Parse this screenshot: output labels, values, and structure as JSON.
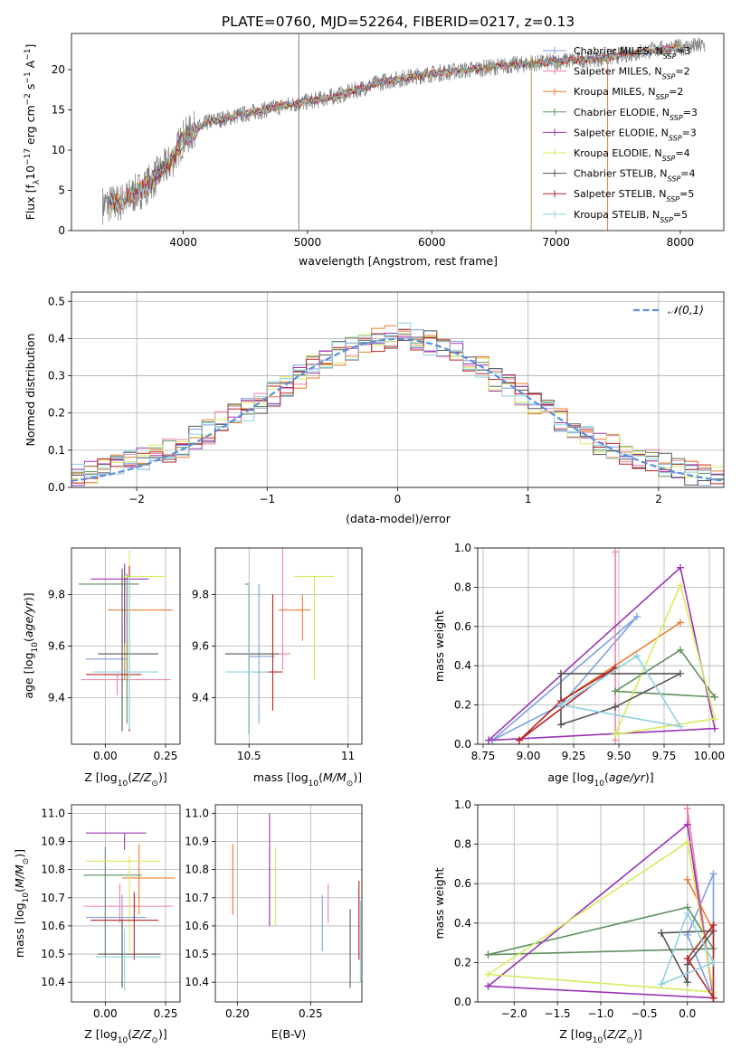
{
  "figure_title": "PLATE=0760, MJD=52264, FIBERID=0217, z=0.13",
  "colors": {
    "Chabrier MILES": "#7f9fdf",
    "Salpeter MILES": "#ee82a9",
    "Kroupa MILES": "#ea7d2f",
    "Chabrier ELODIE": "#5f8f5f",
    "Salpeter ELODIE": "#9b35b5",
    "Kroupa ELODIE": "#d8eb5c",
    "Chabrier STELIB": "#555555",
    "Salpeter STELIB": "#b52525",
    "Kroupa STELIB": "#8fd1e0",
    "normal_curve": "#5b8fd9",
    "data": "#808080"
  },
  "chart_data": [
    {
      "id": "spectrum",
      "type": "line",
      "title": "PLATE=0760, MJD=52264, FIBERID=0217, z=0.13",
      "xlabel": "wavelength [Angstrom, rest frame]",
      "ylabel": "Flux [f_λ 10^-17 erg cm^-2 s^-1 A^-1]",
      "xlim": [
        3100,
        8350
      ],
      "ylim": [
        0,
        24.5
      ],
      "xticks": [
        4000,
        5000,
        6000,
        7000,
        8000
      ],
      "yticks": [
        0,
        5,
        10,
        15,
        20
      ],
      "grid": false,
      "legend_position": "top-right",
      "legend": [
        {
          "label": "Chabrier MILES, N",
          "sub": "SSP",
          "suffix": "=3"
        },
        {
          "label": "Salpeter MILES, N",
          "sub": "SSP",
          "suffix": "=2"
        },
        {
          "label": "Kroupa MILES, N",
          "sub": "SSP",
          "suffix": "=2"
        },
        {
          "label": "Chabrier ELODIE, N",
          "sub": "SSP",
          "suffix": "=3"
        },
        {
          "label": "Salpeter ELODIE, N",
          "sub": "SSP",
          "suffix": "=3"
        },
        {
          "label": "Kroupa ELODIE, N",
          "sub": "SSP",
          "suffix": "=4"
        },
        {
          "label": "Chabrier STELIB, N",
          "sub": "SSP",
          "suffix": "=4"
        },
        {
          "label": "Salpeter STELIB, N",
          "sub": "SSP",
          "suffix": "=5"
        },
        {
          "label": "Kroupa STELIB, N",
          "sub": "SSP",
          "suffix": "=5"
        }
      ],
      "continuum": {
        "x": [
          3350,
          3500,
          3700,
          3900,
          4000,
          4200,
          4500,
          4800,
          5000,
          5300,
          5600,
          6000,
          6300,
          6600,
          7000,
          7400,
          7800,
          8200
        ],
        "y": [
          3.2,
          3.5,
          5.5,
          8.5,
          11.5,
          13.5,
          14.5,
          15.5,
          16.0,
          17.0,
          18.5,
          19.5,
          20.0,
          20.5,
          21.0,
          21.5,
          22.5,
          23.0
        ]
      },
      "spikes": [
        {
          "x": 4930,
          "y0": 0,
          "y1": 24.5
        },
        {
          "x": 6800,
          "y0": 0,
          "y1": 21.8
        },
        {
          "x": 7415,
          "y0": 0,
          "y1": 21.0
        }
      ]
    },
    {
      "id": "residuals",
      "type": "histogram",
      "xlabel": "(data-model)/error",
      "ylabel": "Normed distribution",
      "xlim": [
        -2.5,
        2.5
      ],
      "ylim": [
        0,
        0.525
      ],
      "xticks": [
        -2,
        -1,
        0,
        1,
        2
      ],
      "yticks": [
        0.0,
        0.1,
        0.2,
        0.3,
        0.4,
        0.5
      ],
      "grid": true,
      "bin_width": 0.1,
      "bin_start": -2.5,
      "base_profile": [
        0.03,
        0.04,
        0.05,
        0.06,
        0.07,
        0.08,
        0.09,
        0.1,
        0.11,
        0.13,
        0.15,
        0.17,
        0.19,
        0.21,
        0.23,
        0.25,
        0.27,
        0.3,
        0.32,
        0.34,
        0.36,
        0.37,
        0.39,
        0.4,
        0.4,
        0.41,
        0.4,
        0.39,
        0.38,
        0.36,
        0.34,
        0.32,
        0.29,
        0.27,
        0.25,
        0.22,
        0.2,
        0.18,
        0.16,
        0.14,
        0.12,
        0.11,
        0.09,
        0.08,
        0.07,
        0.06,
        0.05,
        0.04,
        0.035,
        0.03
      ],
      "normal_curve": {
        "label": "𝒩(0,1)",
        "mean": 0.0,
        "sigma": 1.0
      },
      "legend_position": "top-right"
    },
    {
      "id": "age_vs_Z",
      "type": "errorbar",
      "xlabel": "Z [log10(Z/Z⊙)]",
      "ylabel": "age [log10(age/yr)]",
      "xlim": [
        -0.14,
        0.31
      ],
      "ylim": [
        9.22,
        9.98
      ],
      "xticks": [
        0.0,
        0.25
      ],
      "xtick_labels": [
        "0.00",
        "0.25"
      ],
      "yticks": [
        9.4,
        9.6,
        9.8
      ],
      "grid": true,
      "points": [
        {
          "model": "Chabrier MILES",
          "x": 0.07,
          "xerr": [
            0.15,
            0.02
          ],
          "y": 9.55,
          "yerr": [
            0.1,
            0.14
          ]
        },
        {
          "model": "Salpeter MILES",
          "x": 0.05,
          "xerr": [
            0.15,
            0.22
          ],
          "y": 9.47,
          "yerr": [
            0.06,
            0.02
          ]
        },
        {
          "model": "Kroupa MILES",
          "x": 0.08,
          "xerr": [
            0.07,
            0.2
          ],
          "y": 9.74,
          "yerr": [
            0.27,
            0.16
          ]
        },
        {
          "model": "Chabrier ELODIE",
          "x": 0.09,
          "xerr": [
            0.2,
            0.05
          ],
          "y": 9.84,
          "yerr": [
            0.54,
            0.04
          ]
        },
        {
          "model": "Salpeter ELODIE",
          "x": 0.08,
          "xerr": [
            0.14,
            0.1
          ],
          "y": 9.86,
          "yerr": [
            0.25,
            0.06
          ]
        },
        {
          "model": "Kroupa ELODIE",
          "x": 0.1,
          "xerr": [
            0.03,
            0.15
          ],
          "y": 9.87,
          "yerr": [
            0.4,
            0.1
          ]
        },
        {
          "model": "Chabrier STELIB",
          "x": 0.07,
          "xerr": [
            0.1,
            0.15
          ],
          "y": 9.57,
          "yerr": [
            0.3,
            0.33
          ]
        },
        {
          "model": "Salpeter STELIB",
          "x": 0.1,
          "xerr": [
            0.18,
            0.05
          ],
          "y": 9.49,
          "yerr": [
            0.22,
            0.42
          ]
        },
        {
          "model": "Kroupa STELIB",
          "x": 0.1,
          "xerr": [
            0.15,
            0.12
          ],
          "y": 9.5,
          "yerr": [
            0.22,
            0.37
          ]
        }
      ]
    },
    {
      "id": "age_vs_mass",
      "type": "errorbar",
      "xlabel": "mass [log10(M/M⊙)]",
      "ylabel": "",
      "xlim": [
        10.33,
        11.07
      ],
      "ylim": [
        9.22,
        9.98
      ],
      "xticks": [
        10.5,
        11.0
      ],
      "yticks": [
        9.4,
        9.6,
        9.8
      ],
      "grid": true,
      "points": [
        {
          "model": "Chabrier MILES",
          "x": 10.55,
          "xerr": [
            0.05,
            0.08
          ],
          "y": 9.56,
          "yerr": [
            0.26,
            0.28
          ]
        },
        {
          "model": "Salpeter MILES",
          "x": 10.67,
          "xerr": [
            0.06,
            0.04
          ],
          "y": 9.57,
          "yerr": [
            0.06,
            0.41
          ]
        },
        {
          "model": "Kroupa MILES",
          "x": 10.77,
          "xerr": [
            0.12,
            0.04
          ],
          "y": 9.74,
          "yerr": [
            0.12,
            0.06
          ]
        },
        {
          "model": "Chabrier ELODIE",
          "x": 10.5,
          "xerr": [
            0.02,
            0.0
          ],
          "y": 9.84,
          "yerr": [
            0.58,
            0.0
          ]
        },
        {
          "model": "Salpeter ELODIE",
          "x": 10.93,
          "xerr": [
            0.0,
            0.0
          ],
          "y": 9.86,
          "yerr": [
            0.0,
            0.0
          ]
        },
        {
          "model": "Kroupa ELODIE",
          "x": 10.83,
          "xerr": [
            0.1,
            0.1
          ],
          "y": 9.87,
          "yerr": [
            0.4,
            0.0
          ]
        },
        {
          "model": "Chabrier STELIB",
          "x": 10.5,
          "xerr": [
            0.12,
            0.15
          ],
          "y": 9.57,
          "yerr": [
            0.31,
            0.26
          ]
        },
        {
          "model": "Salpeter STELIB",
          "x": 10.62,
          "xerr": [
            0.1,
            0.05
          ],
          "y": 9.5,
          "yerr": [
            0.15,
            0.3
          ]
        },
        {
          "model": "Kroupa STELIB",
          "x": 10.5,
          "xerr": [
            0.12,
            0.1
          ],
          "y": 9.5,
          "yerr": [
            0.24,
            0.34
          ]
        }
      ]
    },
    {
      "id": "mass_weight_vs_age",
      "type": "line",
      "xlabel": "age [log10(age/yr)]",
      "ylabel": "mass weight",
      "xlim": [
        8.72,
        10.08
      ],
      "ylim": [
        0,
        1.0
      ],
      "xticks": [
        8.75,
        9.0,
        9.25,
        9.5,
        9.75,
        10.0
      ],
      "xtick_labels": [
        "8.75",
        "9.00",
        "9.25",
        "9.50",
        "9.75",
        "10.00"
      ],
      "yticks": [
        0.0,
        0.2,
        0.4,
        0.6,
        0.8,
        1.0
      ],
      "grid": true,
      "series": [
        {
          "model": "Chabrier MILES",
          "x": [
            8.8,
            9.18,
            9.6,
            8.8
          ],
          "y": [
            0.02,
            0.2,
            0.65,
            0.02
          ]
        },
        {
          "model": "Salpeter MILES",
          "x": [
            9.48,
            9.48
          ],
          "y": [
            0.98,
            0.02
          ]
        },
        {
          "model": "Kroupa MILES",
          "x": [
            9.18,
            9.84,
            9.18
          ],
          "y": [
            0.22,
            0.62,
            0.22
          ]
        },
        {
          "model": "Chabrier ELODIE",
          "x": [
            9.48,
            9.84,
            10.03,
            9.48
          ],
          "y": [
            0.27,
            0.48,
            0.24,
            0.27
          ]
        },
        {
          "model": "Salpeter ELODIE",
          "x": [
            8.78,
            9.84,
            10.03,
            8.78
          ],
          "y": [
            0.02,
            0.9,
            0.08,
            0.02
          ]
        },
        {
          "model": "Kroupa ELODIE",
          "x": [
            9.48,
            9.84,
            10.03,
            9.48
          ],
          "y": [
            0.05,
            0.81,
            0.13,
            0.05
          ]
        },
        {
          "model": "Chabrier STELIB",
          "x": [
            9.18,
            9.18,
            9.48,
            9.84,
            9.18
          ],
          "y": [
            0.36,
            0.1,
            0.19,
            0.36,
            0.36
          ]
        },
        {
          "model": "Salpeter STELIB",
          "x": [
            8.95,
            9.18,
            9.48,
            8.95
          ],
          "y": [
            0.02,
            0.22,
            0.39,
            0.02
          ]
        },
        {
          "model": "Kroupa STELIB",
          "x": [
            9.18,
            9.6,
            9.84,
            9.18
          ],
          "y": [
            0.2,
            0.45,
            0.09,
            0.2
          ]
        }
      ]
    },
    {
      "id": "mass_vs_Z",
      "type": "errorbar",
      "xlabel": "Z [log10(Z/Z⊙)]",
      "ylabel": "mass [log10(M/M⊙)]",
      "xlim": [
        -0.14,
        0.31
      ],
      "ylim": [
        10.33,
        11.03
      ],
      "xticks": [
        0.0,
        0.25
      ],
      "xtick_labels": [
        "0.00",
        "0.25"
      ],
      "yticks": [
        10.4,
        10.5,
        10.6,
        10.7,
        10.8,
        10.9,
        11.0
      ],
      "grid": true,
      "points": [
        {
          "model": "Chabrier MILES",
          "x": 0.07,
          "xerr": [
            0.15,
            0.1
          ],
          "y": 10.63,
          "yerr": [
            0.12,
            0.08
          ]
        },
        {
          "model": "Salpeter MILES",
          "x": 0.06,
          "xerr": [
            0.15,
            0.22
          ],
          "y": 10.67,
          "yerr": [
            0.06,
            0.08
          ]
        },
        {
          "model": "Kroupa MILES",
          "x": 0.14,
          "xerr": [
            0.07,
            0.15
          ],
          "y": 10.77,
          "yerr": [
            0.13,
            0.12
          ]
        },
        {
          "model": "Chabrier ELODIE",
          "x": 0.0,
          "xerr": [
            0.09,
            0.15
          ],
          "y": 10.78,
          "yerr": [
            0.29,
            0.1
          ]
        },
        {
          "model": "Salpeter ELODIE",
          "x": 0.08,
          "xerr": [
            0.16,
            0.09
          ],
          "y": 10.93,
          "yerr": [
            0.06,
            0.0
          ]
        },
        {
          "model": "Kroupa ELODIE",
          "x": 0.1,
          "xerr": [
            0.18,
            0.13
          ],
          "y": 10.83,
          "yerr": [
            0.32,
            0.02
          ]
        },
        {
          "model": "Chabrier STELIB",
          "x": 0.07,
          "xerr": [
            0.1,
            0.16
          ],
          "y": 10.5,
          "yerr": [
            0.12,
            0.12
          ]
        },
        {
          "model": "Salpeter STELIB",
          "x": 0.12,
          "xerr": [
            0.18,
            0.1
          ],
          "y": 10.62,
          "yerr": [
            0.14,
            0.1
          ]
        },
        {
          "model": "Kroupa STELIB",
          "x": 0.08,
          "xerr": [
            0.12,
            0.15
          ],
          "y": 10.49,
          "yerr": [
            0.12,
            0.1
          ]
        }
      ]
    },
    {
      "id": "mass_vs_ebv",
      "type": "errorbar",
      "xlabel": "E(B-V)",
      "ylabel": "",
      "xlim": [
        0.185,
        0.285
      ],
      "ylim": [
        10.33,
        11.03
      ],
      "xticks": [
        0.2,
        0.25
      ],
      "xtick_labels": [
        "0.20",
        "0.25"
      ],
      "yticks": [
        10.4,
        10.5,
        10.6,
        10.7,
        10.8,
        10.9,
        11.0
      ],
      "grid": true,
      "points": [
        {
          "model": "Chabrier MILES",
          "x": 0.258,
          "y": 10.63,
          "yerr": [
            0.12,
            0.08
          ]
        },
        {
          "model": "Salpeter MILES",
          "x": 0.262,
          "y": 10.67,
          "yerr": [
            0.06,
            0.08
          ]
        },
        {
          "model": "Kroupa MILES",
          "x": 0.197,
          "y": 10.77,
          "yerr": [
            0.13,
            0.12
          ]
        },
        {
          "model": "Chabrier ELODIE",
          "x": 0.222,
          "y": 10.78,
          "yerr": [
            0.18,
            0.1
          ]
        },
        {
          "model": "Salpeter ELODIE",
          "x": 0.222,
          "y": 10.93,
          "yerr": [
            0.33,
            0.07
          ]
        },
        {
          "model": "Kroupa ELODIE",
          "x": 0.226,
          "y": 10.83,
          "yerr": [
            0.23,
            0.05
          ]
        },
        {
          "model": "Chabrier STELIB",
          "x": 0.277,
          "y": 10.5,
          "yerr": [
            0.12,
            0.16
          ]
        },
        {
          "model": "Salpeter STELIB",
          "x": 0.283,
          "y": 10.62,
          "yerr": [
            0.14,
            0.14
          ]
        },
        {
          "model": "Kroupa STELIB",
          "x": 0.284,
          "y": 10.49,
          "yerr": [
            0.09,
            0.2
          ]
        }
      ]
    },
    {
      "id": "mass_weight_vs_Z",
      "type": "line",
      "xlabel": "Z [log10(Z/Z⊙)]",
      "ylabel": "mass weight",
      "xlim": [
        -2.42,
        0.42
      ],
      "ylim": [
        0,
        1.0
      ],
      "xticks": [
        -2.0,
        -1.5,
        -1.0,
        -0.5,
        0.0
      ],
      "xtick_labels": [
        "−2.0",
        "−1.5",
        "−1.0",
        "−0.5",
        "0.0"
      ],
      "yticks": [
        0.0,
        0.2,
        0.4,
        0.6,
        0.8,
        1.0
      ],
      "grid": true,
      "series": [
        {
          "model": "Chabrier MILES",
          "x": [
            0.0,
            0.3,
            0.3,
            0.0
          ],
          "y": [
            0.34,
            0.65,
            0.02,
            0.34
          ]
        },
        {
          "model": "Salpeter MILES",
          "x": [
            0.0,
            0.0,
            0.3,
            0.0
          ],
          "y": [
            0.98,
            0.9,
            0.02,
            0.98
          ]
        },
        {
          "model": "Kroupa MILES",
          "x": [
            0.0,
            0.3,
            0.0
          ],
          "y": [
            0.62,
            0.36,
            0.62
          ]
        },
        {
          "model": "Chabrier ELODIE",
          "x": [
            -2.3,
            0.0,
            0.3,
            -2.3
          ],
          "y": [
            0.24,
            0.48,
            0.27,
            0.24
          ]
        },
        {
          "model": "Salpeter ELODIE",
          "x": [
            -2.3,
            0.0,
            0.3,
            -2.3
          ],
          "y": [
            0.08,
            0.9,
            0.02,
            0.08
          ]
        },
        {
          "model": "Kroupa ELODIE",
          "x": [
            -2.3,
            0.0,
            0.3,
            -2.3
          ],
          "y": [
            0.14,
            0.81,
            0.05,
            0.14
          ]
        },
        {
          "model": "Chabrier STELIB",
          "x": [
            -0.3,
            0.0,
            0.0,
            0.3,
            -0.3
          ],
          "y": [
            0.35,
            0.1,
            0.19,
            0.36,
            0.35
          ]
        },
        {
          "model": "Salpeter STELIB",
          "x": [
            0.3,
            0.0,
            0.3,
            0.3
          ],
          "y": [
            0.02,
            0.22,
            0.39,
            0.02
          ]
        },
        {
          "model": "Kroupa STELIB",
          "x": [
            -0.3,
            0.0,
            0.3,
            -0.3
          ],
          "y": [
            0.09,
            0.45,
            0.2,
            0.09
          ]
        }
      ]
    }
  ]
}
